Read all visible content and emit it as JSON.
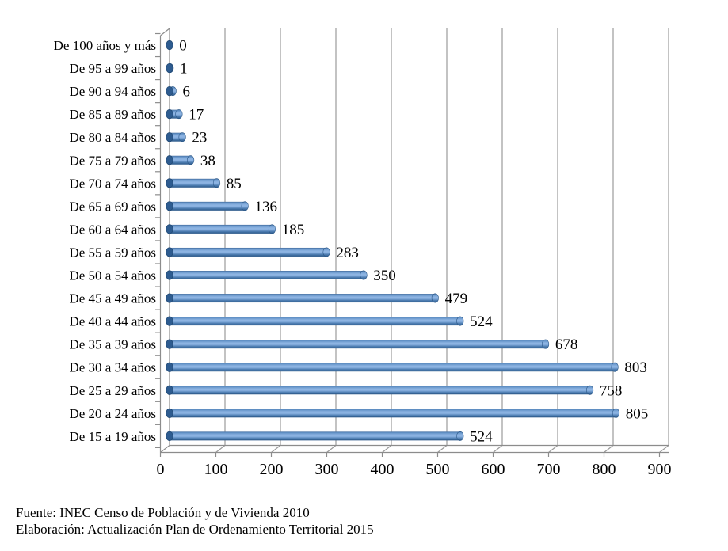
{
  "chart_data": {
    "type": "bar",
    "orientation": "horizontal",
    "style": "3d-cylinder",
    "title": "",
    "xlabel": "",
    "ylabel": "",
    "categories": [
      "De 100 años y más",
      "De 95 a 99 años",
      "De 90 a 94 años",
      "De 85 a 89 años",
      "De 80 a 84 años",
      "De 75 a 79 años",
      "De 70 a 74 años",
      "De 65 a 69 años",
      "De 60 a 64 años",
      "De 55 a 59 años",
      "De 50 a 54 años",
      "De 45 a 49 años",
      "De 40 a 44 años",
      "De 35 a 39 años",
      "De 30 a 34 años",
      "De 25 a 29 años",
      "De 20 a 24 años",
      "De 15 a 19 años"
    ],
    "values": [
      0,
      1,
      6,
      17,
      23,
      38,
      85,
      136,
      185,
      283,
      350,
      479,
      524,
      678,
      803,
      758,
      805,
      524
    ],
    "data_labels": true,
    "xlim": [
      0,
      900
    ],
    "xticks": [
      0,
      100,
      200,
      300,
      400,
      500,
      600,
      700,
      800,
      900
    ],
    "grid": true,
    "legend": "none",
    "colors": {
      "bar_mid_light": "#8FB5E3",
      "bar_light2": "#87AFDF",
      "bar_top": "#466E9F",
      "bar_upper": "#6292C7",
      "bar_lower": "#4A7AAE",
      "bar_dark": "#2B5787",
      "bar_cap": "#2E5C90",
      "bar_cap_edge": "#224A75",
      "gridline": "#9B9B9B",
      "axis": "#8C8C8C",
      "text": "#000000"
    }
  },
  "footer": {
    "line1": "Fuente: INEC Censo de Población y de Vivienda 2010",
    "line2": "Elaboración: Actualización Plan de Ordenamiento Territorial 2015"
  }
}
